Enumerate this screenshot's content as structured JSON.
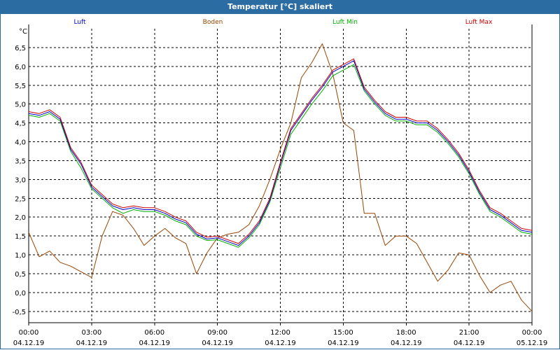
{
  "window": {
    "title": "Temperatur [°C] skaliert"
  },
  "chart_data": {
    "type": "line",
    "title": "Temperatur [°C] skaliert",
    "ylabel": "°C",
    "xlabel": "",
    "ylim": [
      -0.8,
      7.0
    ],
    "xlim": [
      0,
      24
    ],
    "grid": true,
    "legend_position": "top",
    "y_ticks": [
      "6,5",
      "6,0",
      "5,5",
      "5,0",
      "4,5",
      "4,0",
      "3,5",
      "3,0",
      "2,5",
      "2,0",
      "1,5",
      "1,0",
      "0,5",
      "0,0",
      "-0,5"
    ],
    "y_tick_values": [
      6.5,
      6.0,
      5.5,
      5.0,
      4.5,
      4.0,
      3.5,
      3.0,
      2.5,
      2.0,
      1.5,
      1.0,
      0.5,
      0.0,
      -0.5
    ],
    "x_ticks": [
      {
        "time": "00:00",
        "date": "04.12.19"
      },
      {
        "time": "03:00",
        "date": "04.12.19"
      },
      {
        "time": "06:00",
        "date": "04.12.19"
      },
      {
        "time": "09:00",
        "date": "04.12.19"
      },
      {
        "time": "12:00",
        "date": "04.12.19"
      },
      {
        "time": "15:00",
        "date": "04.12.19"
      },
      {
        "time": "18:00",
        "date": "04.12.19"
      },
      {
        "time": "21:00",
        "date": "04.12.19"
      },
      {
        "time": "00:00",
        "date": "05.12.19"
      }
    ],
    "x_tick_values": [
      0,
      3,
      6,
      9,
      12,
      15,
      18,
      21,
      24
    ],
    "series": [
      {
        "name": "Luft",
        "color": "#0000cc",
        "x": [
          0,
          0.5,
          1,
          1.5,
          2,
          2.5,
          3,
          3.5,
          4,
          4.5,
          5,
          5.5,
          6,
          6.5,
          7,
          7.5,
          8,
          8.5,
          9,
          9.5,
          10,
          10.5,
          11,
          11.5,
          12,
          12.5,
          13,
          13.5,
          14,
          14.5,
          15,
          15.5,
          16,
          16.5,
          17,
          17.5,
          18,
          18.5,
          19,
          19.5,
          20,
          20.5,
          21,
          21.5,
          22,
          22.5,
          23,
          23.5,
          24
        ],
        "values": [
          4.75,
          4.7,
          4.8,
          4.6,
          3.8,
          3.4,
          2.8,
          2.55,
          2.3,
          2.2,
          2.25,
          2.2,
          2.2,
          2.1,
          1.95,
          1.85,
          1.55,
          1.42,
          1.45,
          1.35,
          1.25,
          1.5,
          1.85,
          2.45,
          3.4,
          4.3,
          4.7,
          5.1,
          5.45,
          5.85,
          6.0,
          6.15,
          5.4,
          5.05,
          4.75,
          4.6,
          4.6,
          4.5,
          4.5,
          4.3,
          4.0,
          3.65,
          3.2,
          2.65,
          2.2,
          2.05,
          1.85,
          1.65,
          1.6
        ]
      },
      {
        "name": "Boden",
        "color": "#994400",
        "x": [
          0,
          0.5,
          1,
          1.5,
          2,
          2.5,
          3,
          3.5,
          4,
          4.5,
          5,
          5.5,
          6,
          6.5,
          7,
          7.5,
          8,
          8.5,
          9,
          9.5,
          10,
          10.5,
          11,
          11.5,
          12,
          12.5,
          13,
          13.5,
          14,
          14.5,
          15,
          15.5,
          16,
          16.5,
          17,
          17.5,
          18,
          18.5,
          19,
          19.5,
          20,
          20.5,
          21,
          21.5,
          22,
          22.5,
          23,
          23.5,
          24
        ],
        "values": [
          1.6,
          0.95,
          1.1,
          0.8,
          0.7,
          0.55,
          0.4,
          1.5,
          2.15,
          2.05,
          1.7,
          1.25,
          1.5,
          1.7,
          1.45,
          1.3,
          0.5,
          1.05,
          1.45,
          1.55,
          1.6,
          1.8,
          2.3,
          3.0,
          3.8,
          4.5,
          5.7,
          6.1,
          6.6,
          5.8,
          4.5,
          4.3,
          2.1,
          2.1,
          1.25,
          1.5,
          1.5,
          1.3,
          0.8,
          0.3,
          0.6,
          1.05,
          1.0,
          0.45,
          0.0,
          0.2,
          0.3,
          -0.2,
          -0.5
        ]
      },
      {
        "name": "Luft Min",
        "color": "#00b000",
        "x": [
          0,
          0.5,
          1,
          1.5,
          2,
          2.5,
          3,
          3.5,
          4,
          4.5,
          5,
          5.5,
          6,
          6.5,
          7,
          7.5,
          8,
          8.5,
          9,
          9.5,
          10,
          10.5,
          11,
          11.5,
          12,
          12.5,
          13,
          13.5,
          14,
          14.5,
          15,
          15.5,
          16,
          16.5,
          17,
          17.5,
          18,
          18.5,
          19,
          19.5,
          20,
          20.5,
          21,
          21.5,
          22,
          22.5,
          23,
          23.5,
          24
        ],
        "values": [
          4.7,
          4.65,
          4.75,
          4.55,
          3.75,
          3.3,
          2.75,
          2.5,
          2.25,
          2.1,
          2.2,
          2.15,
          2.15,
          2.05,
          1.9,
          1.8,
          1.5,
          1.38,
          1.4,
          1.3,
          1.2,
          1.45,
          1.8,
          2.4,
          3.3,
          4.2,
          4.6,
          5.0,
          5.35,
          5.75,
          5.9,
          6.05,
          5.35,
          5.0,
          4.7,
          4.55,
          4.55,
          4.45,
          4.45,
          4.25,
          3.95,
          3.6,
          3.15,
          2.6,
          2.15,
          2.0,
          1.8,
          1.6,
          1.55
        ]
      },
      {
        "name": "Luft Max",
        "color": "#cc0000",
        "x": [
          0,
          0.5,
          1,
          1.5,
          2,
          2.5,
          3,
          3.5,
          4,
          4.5,
          5,
          5.5,
          6,
          6.5,
          7,
          7.5,
          8,
          8.5,
          9,
          9.5,
          10,
          10.5,
          11,
          11.5,
          12,
          12.5,
          13,
          13.5,
          14,
          14.5,
          15,
          15.5,
          16,
          16.5,
          17,
          17.5,
          18,
          18.5,
          19,
          19.5,
          20,
          20.5,
          21,
          21.5,
          22,
          22.5,
          23,
          23.5,
          24
        ],
        "values": [
          4.8,
          4.75,
          4.85,
          4.65,
          3.85,
          3.45,
          2.85,
          2.6,
          2.35,
          2.25,
          2.3,
          2.25,
          2.25,
          2.15,
          2.0,
          1.9,
          1.6,
          1.47,
          1.5,
          1.4,
          1.3,
          1.55,
          1.9,
          2.5,
          3.45,
          4.35,
          4.75,
          5.15,
          5.5,
          5.9,
          6.05,
          6.2,
          5.45,
          5.1,
          4.8,
          4.65,
          4.65,
          4.55,
          4.55,
          4.35,
          4.05,
          3.7,
          3.25,
          2.7,
          2.25,
          2.1,
          1.9,
          1.7,
          1.65
        ]
      }
    ]
  }
}
